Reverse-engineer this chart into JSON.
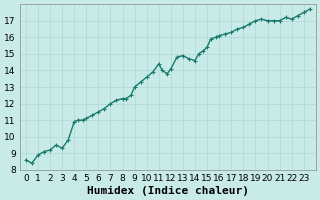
{
  "x": [
    0,
    0.5,
    1,
    1.5,
    2,
    2.5,
    3,
    3.5,
    4,
    4.3,
    4.7,
    5,
    5.5,
    6,
    6.5,
    7,
    7.5,
    8,
    8.3,
    8.7,
    9,
    9.5,
    10,
    10.5,
    11,
    11.3,
    11.7,
    12,
    12.5,
    13,
    13.5,
    14,
    14.3,
    14.7,
    15,
    15.3,
    15.7,
    16,
    16.5,
    17,
    17.5,
    18,
    18.5,
    19,
    19.5,
    20,
    20.5,
    21,
    21.5,
    22,
    22.5,
    23,
    23.5
  ],
  "y": [
    8.6,
    8.4,
    8.9,
    9.1,
    9.2,
    9.5,
    9.3,
    9.8,
    10.9,
    11.0,
    11.0,
    11.1,
    11.3,
    11.5,
    11.7,
    12.0,
    12.2,
    12.3,
    12.3,
    12.5,
    13.0,
    13.3,
    13.6,
    13.9,
    14.4,
    14.0,
    13.8,
    14.1,
    14.8,
    14.9,
    14.7,
    14.6,
    15.0,
    15.2,
    15.4,
    15.9,
    16.0,
    16.1,
    16.2,
    16.3,
    16.5,
    16.6,
    16.8,
    17.0,
    17.1,
    17.0,
    17.0,
    17.0,
    17.2,
    17.1,
    17.3,
    17.5,
    17.7
  ],
  "line_color": "#1a7a6e",
  "marker_color": "#1a7a6e",
  "bg_color": "#c8ebe8",
  "grid_color": "#b0d8d4",
  "xlabel": "Humidex (Indice chaleur)",
  "xlim": [
    -0.5,
    24
  ],
  "ylim": [
    8,
    18
  ],
  "xticks": [
    0,
    1,
    2,
    3,
    4,
    5,
    6,
    7,
    8,
    9,
    10,
    11,
    12,
    13,
    14,
    15,
    16,
    17,
    18,
    19,
    20,
    21,
    22,
    23
  ],
  "yticks": [
    8,
    9,
    10,
    11,
    12,
    13,
    14,
    15,
    16,
    17
  ],
  "tick_fontsize": 6.5,
  "xlabel_fontsize": 8,
  "marker_size": 2.5,
  "line_width": 1.0
}
